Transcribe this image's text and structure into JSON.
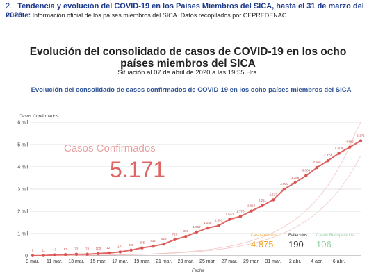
{
  "caption": {
    "number": "2.",
    "title": "Tendencia y evolución del COVID-19 en los Países Miembros del SICA, hasta el 31 de marzo del 2020."
  },
  "source": {
    "label": "Fuente:",
    "text": "Información oficial de los países miembros del SICA. Datos recopilados por CEPREDENAC"
  },
  "infographic": {
    "title": "Evolución del consolidado de casos de COVID-19 en los ocho países miembros del SICA",
    "situation": "Situación al  07 de abril de 2020 a las 19:55 Hrs."
  },
  "summary": {
    "confirmed_label": "Casos Confirmados",
    "confirmed_value": "5.171",
    "active_label": "Casos Activos",
    "active_value": "4.875",
    "deaths_label": "Fallecidos",
    "deaths_value": "190",
    "recovered_label": "Casos Recuperados",
    "recovered_value": "106"
  },
  "colors": {
    "line": "#e06666",
    "marker": "#d9534f",
    "trend": "#f2c4c4",
    "active": "#f0a830",
    "deaths": "#333333",
    "recovered": "#8fd19e",
    "title_blue": "#2f5496"
  },
  "chart_data": {
    "type": "line",
    "title": "Evolución del consolidado de casos confirmados de COVID-19 en los ocho países miembros del SICA",
    "xlabel": "Fecha",
    "ylabel": "Casos Confirmados",
    "ylim": [
      0,
      6000
    ],
    "yticks": [
      {
        "value": 0,
        "label": "0"
      },
      {
        "value": 1000,
        "label": "1 mil"
      },
      {
        "value": 2000,
        "label": "2 mil"
      },
      {
        "value": 3000,
        "label": "3 mil"
      },
      {
        "value": 4000,
        "label": "4 mil"
      },
      {
        "value": 5000,
        "label": "5 mil"
      },
      {
        "value": 6000,
        "label": "6 mil"
      }
    ],
    "xtick_labels": [
      "9 mar.",
      "11 mar.",
      "13 mar.",
      "15 mar.",
      "17 mar.",
      "19 mar.",
      "21 mar.",
      "23 mar.",
      "25 mar.",
      "27 mar.",
      "29 mar.",
      "31 mar.",
      "2 abr.",
      "4 abr.",
      "6 abr."
    ],
    "grid": true,
    "series": [
      {
        "values": [
          8,
          11,
          43,
          57,
          73,
          73,
          100,
          127,
          174,
          255,
          355,
          432,
          528,
          728,
          868,
          1067,
          1246,
          1353,
          1633,
          1770,
          2010,
          2251,
          2517,
          3000,
          3286,
          3604,
          3966,
          4274,
          4608,
          4885,
          5171
        ],
        "labels": [
          "8",
          "11",
          "43",
          "57",
          "73",
          "73",
          "100",
          "127",
          "174",
          "255",
          "355",
          "432",
          "528",
          "728",
          "868",
          "1.067",
          "1.246",
          "1.353",
          "1.633",
          "1.770",
          "2.010",
          "2.251",
          "2.517",
          "3.000",
          "3.286",
          "3.604",
          "3.966",
          "4.274",
          "4.608",
          "4.885",
          "5.171"
        ]
      }
    ]
  }
}
